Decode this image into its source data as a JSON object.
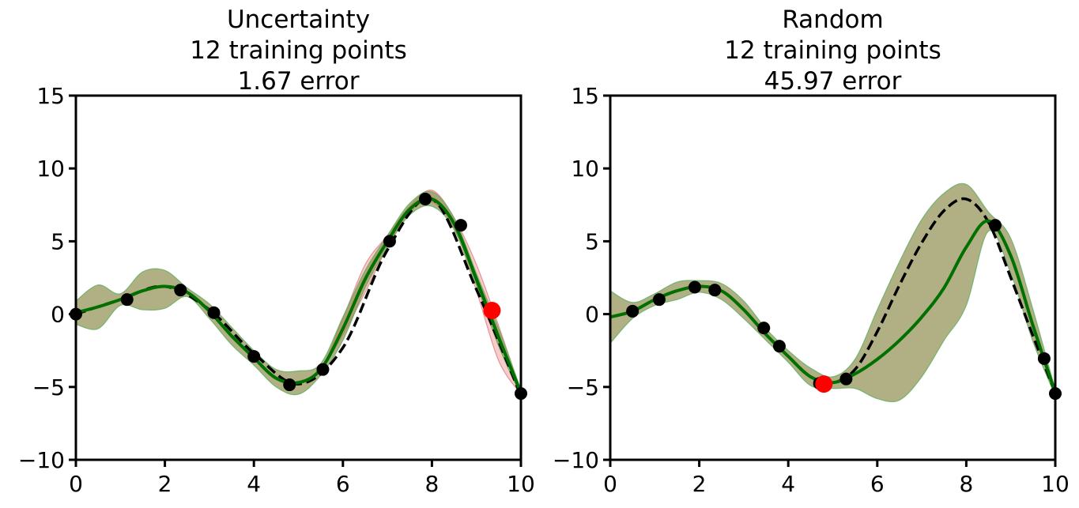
{
  "colors": {
    "truth": "#000000",
    "mean": "#007000",
    "band": "#8f8f50",
    "band_edge": "#5fae5f",
    "alt_band": "#f4a0a0",
    "training_point": "#000000",
    "query_point": "#ff0000"
  },
  "chart_data": [
    {
      "type": "line",
      "title_lines": [
        "Uncertainty",
        "12 training points",
        "1.67 error"
      ],
      "xlim": [
        0,
        10
      ],
      "ylim": [
        -10,
        15
      ],
      "xticks": [
        0,
        2,
        4,
        6,
        8,
        10
      ],
      "yticks": [
        -10,
        -5,
        0,
        5,
        10,
        15
      ],
      "xtick_labels": [
        "0",
        "2",
        "4",
        "6",
        "8",
        "10"
      ],
      "ytick_labels": [
        "−10",
        "−5",
        "0",
        "5",
        "10",
        "15"
      ],
      "grid": false,
      "legend": "none",
      "series": [
        {
          "role": "true-function",
          "style": "dashed",
          "x": [
            0,
            1,
            2,
            3,
            4,
            5,
            6,
            7,
            8,
            9,
            10
          ],
          "y": [
            0.0,
            1.0,
            1.9,
            0.3,
            -2.7,
            -4.8,
            -2.3,
            4.4,
            7.9,
            1.7,
            -5.6
          ]
        },
        {
          "role": "gp-mean",
          "style": "solid",
          "x": [
            0,
            0.5,
            1,
            1.5,
            2,
            2.5,
            3,
            3.5,
            4,
            4.5,
            5,
            5.5,
            6,
            6.5,
            7,
            7.5,
            8,
            8.5,
            9,
            9.5,
            10
          ],
          "y": [
            0.1,
            0.5,
            1.0,
            1.6,
            1.9,
            1.5,
            0.2,
            -1.5,
            -3.0,
            -4.4,
            -4.7,
            -3.8,
            -1.0,
            2.4,
            5.0,
            7.2,
            7.9,
            6.2,
            2.4,
            -1.6,
            -5.4
          ]
        }
      ],
      "bands": [
        {
          "role": "alt-uncertainty",
          "color": "alt_band",
          "x": [
            0,
            0.5,
            1,
            1.5,
            2,
            2.5,
            3,
            3.5,
            4,
            4.5,
            5,
            5.5,
            6,
            6.5,
            7,
            7.5,
            8,
            8.5,
            9,
            9.5,
            10
          ],
          "lower": [
            0.1,
            0.5,
            1.0,
            1.6,
            1.9,
            1.5,
            0.2,
            -1.5,
            -3.0,
            -4.4,
            -4.7,
            -3.8,
            -1.4,
            1.5,
            4.6,
            7.0,
            7.7,
            5.9,
            1.6,
            -3.2,
            -5.5
          ],
          "upper": [
            0.1,
            0.5,
            1.0,
            1.6,
            1.9,
            1.5,
            0.2,
            -1.5,
            -3.0,
            -4.4,
            -4.7,
            -3.8,
            -0.3,
            3.4,
            5.4,
            7.4,
            8.5,
            6.6,
            3.4,
            -0.8,
            -5.3
          ]
        },
        {
          "role": "gp-uncertainty",
          "color": "band",
          "x": [
            0,
            0.5,
            1,
            1.5,
            2,
            2.5,
            3,
            3.5,
            4,
            4.5,
            5,
            5.5,
            6,
            6.5,
            7,
            7.5,
            8,
            8.5,
            9,
            9.5,
            10
          ],
          "lower": [
            -0.7,
            -1.0,
            0.6,
            0.3,
            0.4,
            1.2,
            -0.3,
            -2.1,
            -3.5,
            -5.0,
            -5.5,
            -4.2,
            -1.8,
            1.8,
            4.6,
            6.8,
            7.4,
            5.8,
            2.0,
            -2.2,
            -5.6
          ],
          "upper": [
            0.9,
            2.0,
            1.4,
            2.9,
            3.0,
            1.8,
            0.7,
            -0.9,
            -2.5,
            -3.8,
            -3.9,
            -3.4,
            -0.2,
            3.0,
            5.4,
            7.6,
            8.4,
            6.6,
            2.8,
            -1.0,
            -5.2
          ]
        }
      ],
      "points": {
        "x": [
          0.0,
          1.15,
          2.35,
          3.1,
          4.0,
          4.8,
          5.55,
          7.05,
          7.85,
          8.65,
          10.0
        ],
        "y": [
          0.0,
          1.0,
          1.65,
          0.1,
          -2.9,
          -4.85,
          -3.8,
          5.0,
          7.9,
          6.1,
          -5.45
        ]
      },
      "query_point": {
        "x": 9.35,
        "y": 0.25
      }
    },
    {
      "type": "line",
      "title_lines": [
        "Random",
        "12 training points",
        "45.97 error"
      ],
      "xlim": [
        0,
        10
      ],
      "ylim": [
        -10,
        15
      ],
      "xticks": [
        0,
        2,
        4,
        6,
        8,
        10
      ],
      "yticks": [
        -10,
        -5,
        0,
        5,
        10,
        15
      ],
      "xtick_labels": [
        "0",
        "2",
        "4",
        "6",
        "8",
        "10"
      ],
      "ytick_labels": [
        "−10",
        "−5",
        "0",
        "5",
        "10",
        "15"
      ],
      "grid": false,
      "legend": "none",
      "series": [
        {
          "role": "true-function",
          "style": "dashed",
          "x": [
            0,
            0.5,
            1,
            1.5,
            2,
            2.5,
            3,
            3.5,
            4,
            4.5,
            5,
            5.5,
            6,
            6.5,
            7,
            7.5,
            8,
            8.5,
            9,
            9.5,
            10
          ],
          "y": [
            -0.2,
            0.2,
            1.0,
            1.6,
            1.9,
            1.6,
            0.3,
            -1.4,
            -2.9,
            -4.3,
            -4.7,
            -3.8,
            -1.2,
            2.0,
            4.9,
            7.1,
            7.9,
            6.3,
            2.5,
            -1.5,
            -5.4
          ]
        },
        {
          "role": "gp-mean",
          "style": "solid",
          "x": [
            0,
            0.5,
            1,
            1.5,
            2,
            2.5,
            3,
            3.5,
            4,
            4.5,
            5,
            5.5,
            6,
            6.5,
            7,
            7.5,
            8,
            8.5,
            9,
            9.5,
            10
          ],
          "y": [
            -0.2,
            0.2,
            1.0,
            1.6,
            1.9,
            1.6,
            0.3,
            -1.4,
            -2.9,
            -4.3,
            -4.7,
            -4.1,
            -3.1,
            -1.8,
            -0.2,
            1.8,
            4.6,
            6.4,
            4.0,
            -0.8,
            -5.4
          ]
        }
      ],
      "bands": [
        {
          "role": "gp-uncertainty",
          "color": "band",
          "x": [
            0,
            0.5,
            1,
            1.5,
            2,
            2.5,
            3,
            3.5,
            4,
            4.5,
            5,
            5.5,
            6,
            6.5,
            7,
            7.5,
            8,
            8.5,
            9,
            9.5,
            10
          ],
          "lower": [
            -2.0,
            -0.3,
            0.6,
            1.0,
            1.5,
            1.0,
            -0.3,
            -1.8,
            -3.3,
            -4.9,
            -5.1,
            -5.1,
            -5.8,
            -5.9,
            -4.3,
            -1.8,
            0.6,
            5.7,
            2.8,
            -1.9,
            -5.6
          ],
          "upper": [
            1.6,
            0.8,
            1.4,
            2.2,
            2.3,
            2.1,
            0.9,
            -1.0,
            -2.5,
            -3.7,
            -4.3,
            -3.1,
            0.3,
            3.6,
            6.5,
            8.3,
            8.9,
            7.0,
            5.2,
            0.3,
            -5.2
          ]
        }
      ],
      "points": {
        "x": [
          0.5,
          1.1,
          1.9,
          2.35,
          3.45,
          3.8,
          4.7,
          5.3,
          8.65,
          9.75,
          10.0
        ],
        "y": [
          0.2,
          1.0,
          1.85,
          1.65,
          -0.95,
          -2.2,
          -4.75,
          -4.45,
          6.1,
          -3.05,
          -5.45
        ]
      },
      "query_point": {
        "x": 4.8,
        "y": -4.8
      }
    }
  ]
}
